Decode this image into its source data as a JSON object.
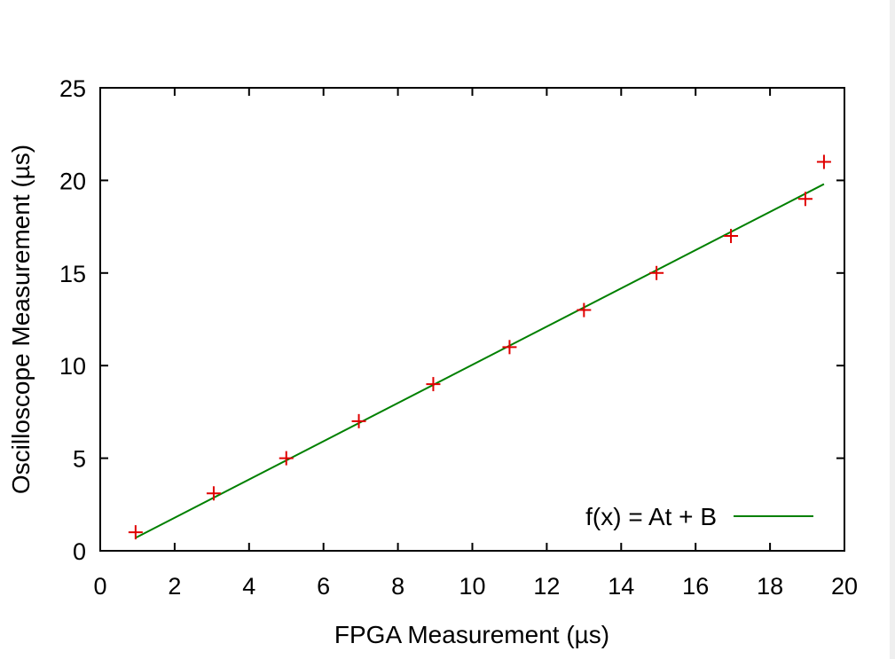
{
  "chart_data": {
    "type": "scatter",
    "xlabel": "FPGA Measurement (µs)",
    "ylabel": "Oscilloscope Measurement (µs)",
    "xlim": [
      0,
      20
    ],
    "ylim": [
      0,
      25
    ],
    "xticks": [
      0,
      2,
      4,
      6,
      8,
      10,
      12,
      14,
      16,
      18,
      20
    ],
    "yticks": [
      0,
      5,
      10,
      15,
      20,
      25
    ],
    "grid": false,
    "legend_position": "bottom-right",
    "series": [
      {
        "type": "scatter",
        "marker": "plus",
        "color": "#e00000",
        "x": [
          0.95,
          3.05,
          5.0,
          6.95,
          8.95,
          11.0,
          13.0,
          14.95,
          16.95,
          18.95,
          19.45
        ],
        "y": [
          1.0,
          3.1,
          5.0,
          7.0,
          9.0,
          11.0,
          13.0,
          15.0,
          17.0,
          19.0,
          21.0
        ]
      },
      {
        "type": "line",
        "name": "f(x) = At + B",
        "color": "#008000",
        "x": [
          0.95,
          19.45
        ],
        "y": [
          0.7,
          19.8
        ]
      }
    ]
  }
}
